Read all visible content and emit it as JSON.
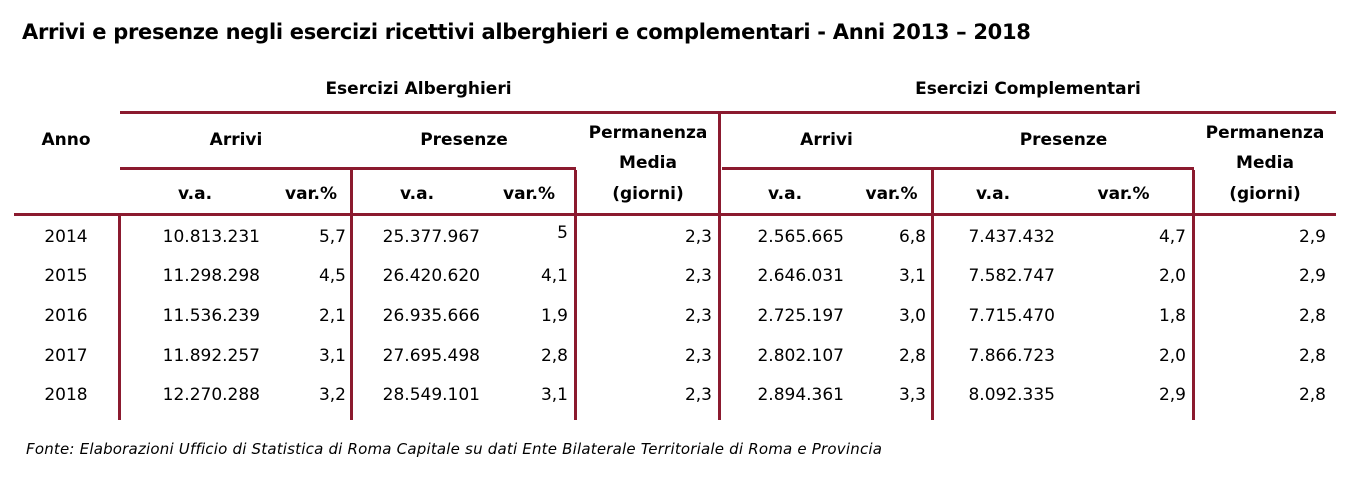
{
  "title": "Arrivi e presenze negli esercizi ricettivi alberghieri e complementari - Anni 2013 – 2018",
  "groups": {
    "alberghieri": "Esercizi Alberghieri",
    "complementari": "Esercizi Complementari"
  },
  "headers": {
    "anno": "Anno",
    "arrivi": "Arrivi",
    "presenze": "Presenze",
    "permanenza_1": "Permanenza",
    "permanenza_2": "Media",
    "permanenza_3": "(giorni)",
    "va": "v.a.",
    "var": "var.%"
  },
  "rows": [
    {
      "anno": "2014",
      "alb_arr_va": "10.813.231",
      "alb_arr_var": "5,7",
      "alb_pres_va": "25.377.967",
      "alb_pres_var": "5",
      "alb_perm": "2,3",
      "com_arr_va": "2.565.665",
      "com_arr_var": "6,8",
      "com_pres_va": "7.437.432",
      "com_pres_var": "4,7",
      "com_perm": "2,9"
    },
    {
      "anno": "2015",
      "alb_arr_va": "11.298.298",
      "alb_arr_var": "4,5",
      "alb_pres_va": "26.420.620",
      "alb_pres_var": "4,1",
      "alb_perm": "2,3",
      "com_arr_va": "2.646.031",
      "com_arr_var": "3,1",
      "com_pres_va": "7.582.747",
      "com_pres_var": "2,0",
      "com_perm": "2,9"
    },
    {
      "anno": "2016",
      "alb_arr_va": "11.536.239",
      "alb_arr_var": "2,1",
      "alb_pres_va": "26.935.666",
      "alb_pres_var": "1,9",
      "alb_perm": "2,3",
      "com_arr_va": "2.725.197",
      "com_arr_var": "3,0",
      "com_pres_va": "7.715.470",
      "com_pres_var": "1,8",
      "com_perm": "2,8"
    },
    {
      "anno": "2017",
      "alb_arr_va": "11.892.257",
      "alb_arr_var": "3,1",
      "alb_pres_va": "27.695.498",
      "alb_pres_var": "2,8",
      "alb_perm": "2,3",
      "com_arr_va": "2.802.107",
      "com_arr_var": "2,8",
      "com_pres_va": "7.866.723",
      "com_pres_var": "2,0",
      "com_perm": "2,8"
    },
    {
      "anno": "2018",
      "alb_arr_va": "12.270.288",
      "alb_arr_var": "3,2",
      "alb_pres_va": "28.549.101",
      "alb_pres_var": "3,1",
      "alb_perm": "2,3",
      "com_arr_va": "2.894.361",
      "com_arr_var": "3,3",
      "com_pres_va": "8.092.335",
      "com_pres_var": "2,9",
      "com_perm": "2,8"
    }
  ],
  "source": "Fonte: Elaborazioni Ufficio di Statistica di Roma Capitale su dati Ente Bilaterale Territoriale di Roma e Provincia"
}
